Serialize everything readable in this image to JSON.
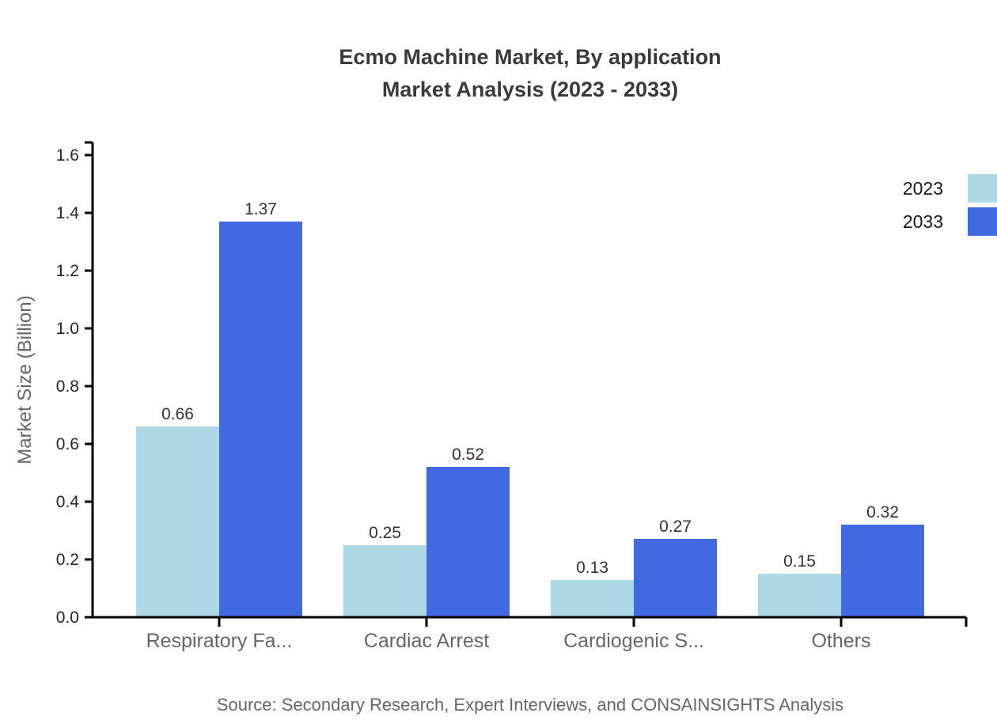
{
  "title": {
    "line1": "Ecmo Machine Market, By application",
    "line2": "Market Analysis (2023 - 2033)"
  },
  "source": "Source: Secondary Research, Expert Interviews, and CONSAINSIGHTS Analysis",
  "colors": {
    "series_2023": "#ADD8E6",
    "series_2033": "#4169E1",
    "axis": "#000000",
    "tick_label": "#262626",
    "category_label": "#666666",
    "value_label": "#333333",
    "title_text": "#3a3a3a",
    "source_text": "#666666"
  },
  "chart_data": {
    "type": "bar",
    "title": "Ecmo Machine Market, By application Market Analysis (2023 - 2033)",
    "categories": [
      "Respiratory Fa...",
      "Cardiac Arrest",
      "Cardiogenic S...",
      "Others"
    ],
    "series": [
      {
        "name": "2023",
        "color": "#ADD8E6",
        "values": [
          0.66,
          0.25,
          0.13,
          0.15
        ]
      },
      {
        "name": "2033",
        "color": "#4169E1",
        "values": [
          1.37,
          0.52,
          0.27,
          0.32
        ]
      }
    ],
    "xlabel": "",
    "ylabel": "Market Size (Billion)",
    "ylim": [
      0,
      1.6
    ],
    "ytick_step": 0.2,
    "ytick_labels": [
      "0.0",
      "0.2",
      "0.4",
      "0.6",
      "0.8",
      "1.0",
      "1.2",
      "1.4",
      "1.6"
    ],
    "value_labels": [
      [
        "0.66",
        "0.25",
        "0.13",
        "0.15"
      ],
      [
        "1.37",
        "0.52",
        "0.27",
        "0.32"
      ]
    ],
    "grid": false,
    "legend_position": "top-right"
  },
  "legend": {
    "items": [
      {
        "label": "2023",
        "color": "#ADD8E6"
      },
      {
        "label": "2033",
        "color": "#4169E1"
      }
    ]
  }
}
